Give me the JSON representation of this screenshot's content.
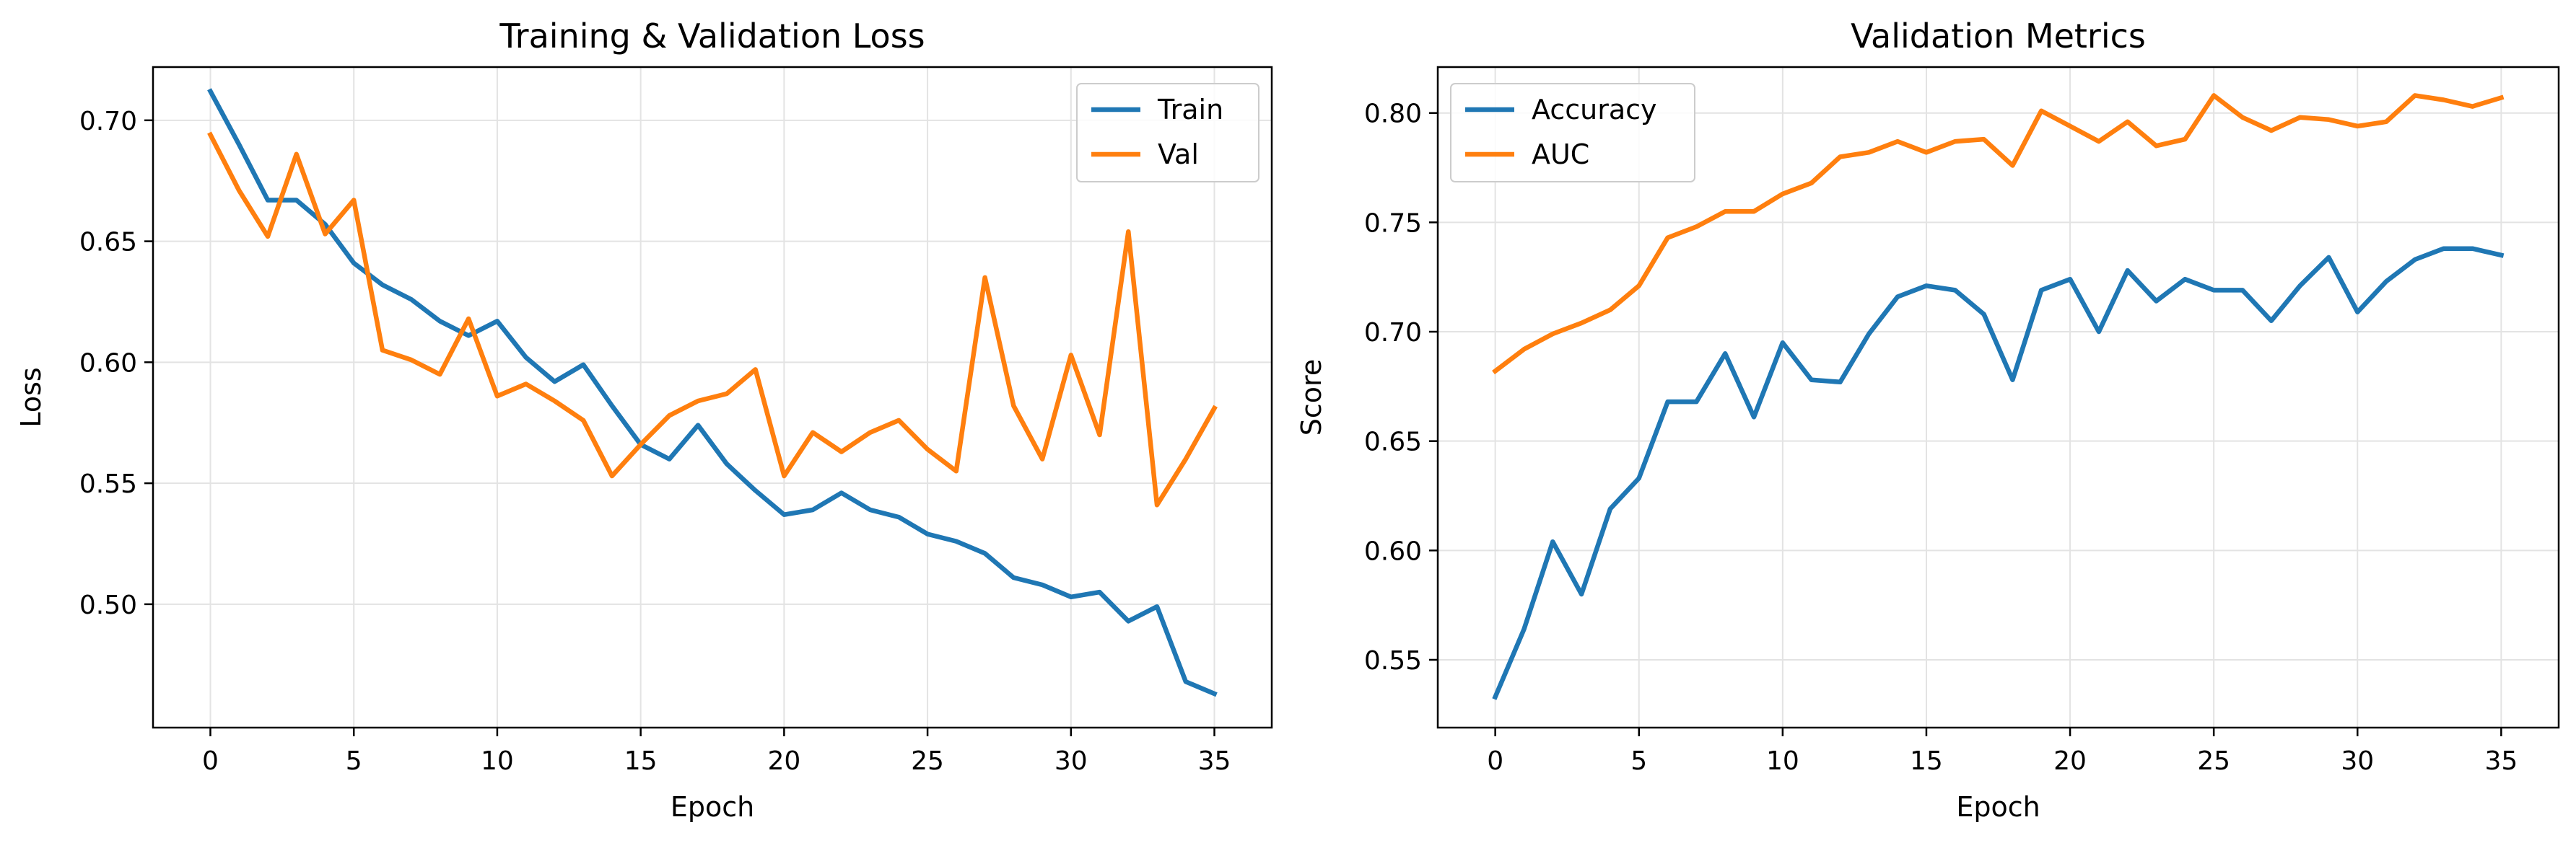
{
  "chart_data": [
    {
      "type": "line",
      "title": "Training & Validation Loss",
      "xlabel": "Epoch",
      "ylabel": "Loss",
      "xlim": [
        -2,
        37
      ],
      "ylim": [
        0.449,
        0.722
      ],
      "xticks": [
        0,
        5,
        10,
        15,
        20,
        25,
        30,
        35
      ],
      "yticks": [
        0.5,
        0.55,
        0.6,
        0.65,
        0.7
      ],
      "ytick_labels": [
        "0.50",
        "0.55",
        "0.60",
        "0.65",
        "0.70"
      ],
      "grid": true,
      "legend_position": "top-right",
      "x": [
        0,
        1,
        2,
        3,
        4,
        5,
        6,
        7,
        8,
        9,
        10,
        11,
        12,
        13,
        14,
        15,
        16,
        17,
        18,
        19,
        20,
        21,
        22,
        23,
        24,
        25,
        26,
        27,
        28,
        29,
        30,
        31,
        32,
        33,
        34,
        35
      ],
      "series": [
        {
          "name": "Train",
          "color": "#1f77b4",
          "values": [
            0.712,
            0.69,
            0.667,
            0.667,
            0.657,
            0.641,
            0.632,
            0.626,
            0.617,
            0.611,
            0.617,
            0.602,
            0.592,
            0.599,
            0.582,
            0.566,
            0.56,
            0.574,
            0.558,
            0.547,
            0.537,
            0.539,
            0.546,
            0.539,
            0.536,
            0.529,
            0.526,
            0.521,
            0.511,
            0.508,
            0.503,
            0.505,
            0.493,
            0.499,
            0.468,
            0.463
          ]
        },
        {
          "name": "Val",
          "color": "#ff7f0e",
          "values": [
            0.694,
            0.671,
            0.652,
            0.686,
            0.653,
            0.667,
            0.605,
            0.601,
            0.595,
            0.618,
            0.586,
            0.591,
            0.584,
            0.576,
            0.553,
            0.566,
            0.578,
            0.584,
            0.587,
            0.597,
            0.553,
            0.571,
            0.563,
            0.571,
            0.576,
            0.564,
            0.555,
            0.635,
            0.582,
            0.56,
            0.603,
            0.57,
            0.654,
            0.541,
            0.56,
            0.581
          ]
        }
      ]
    },
    {
      "type": "line",
      "title": "Validation Metrics",
      "xlabel": "Epoch",
      "ylabel": "Score",
      "xlim": [
        -2,
        37
      ],
      "ylim": [
        0.519,
        0.821
      ],
      "xticks": [
        0,
        5,
        10,
        15,
        20,
        25,
        30,
        35
      ],
      "yticks": [
        0.55,
        0.6,
        0.65,
        0.7,
        0.75,
        0.8
      ],
      "ytick_labels": [
        "0.55",
        "0.60",
        "0.65",
        "0.70",
        "0.75",
        "0.80"
      ],
      "grid": true,
      "legend_position": "top-left",
      "x": [
        0,
        1,
        2,
        3,
        4,
        5,
        6,
        7,
        8,
        9,
        10,
        11,
        12,
        13,
        14,
        15,
        16,
        17,
        18,
        19,
        20,
        21,
        22,
        23,
        24,
        25,
        26,
        27,
        28,
        29,
        30,
        31,
        32,
        33,
        34,
        35
      ],
      "series": [
        {
          "name": "Accuracy",
          "color": "#1f77b4",
          "values": [
            0.533,
            0.564,
            0.604,
            0.58,
            0.619,
            0.633,
            0.668,
            0.668,
            0.69,
            0.661,
            0.695,
            0.678,
            0.677,
            0.699,
            0.716,
            0.721,
            0.719,
            0.708,
            0.678,
            0.719,
            0.724,
            0.7,
            0.728,
            0.714,
            0.724,
            0.719,
            0.719,
            0.705,
            0.721,
            0.734,
            0.709,
            0.723,
            0.733,
            0.738,
            0.738,
            0.735
          ]
        },
        {
          "name": "AUC",
          "color": "#ff7f0e",
          "values": [
            0.682,
            0.692,
            0.699,
            0.704,
            0.71,
            0.721,
            0.743,
            0.748,
            0.755,
            0.755,
            0.763,
            0.768,
            0.78,
            0.782,
            0.787,
            0.782,
            0.787,
            0.788,
            0.776,
            0.801,
            0.794,
            0.787,
            0.796,
            0.785,
            0.788,
            0.808,
            0.798,
            0.792,
            0.798,
            0.797,
            0.794,
            0.796,
            0.808,
            0.806,
            0.803,
            0.807
          ]
        }
      ]
    }
  ]
}
